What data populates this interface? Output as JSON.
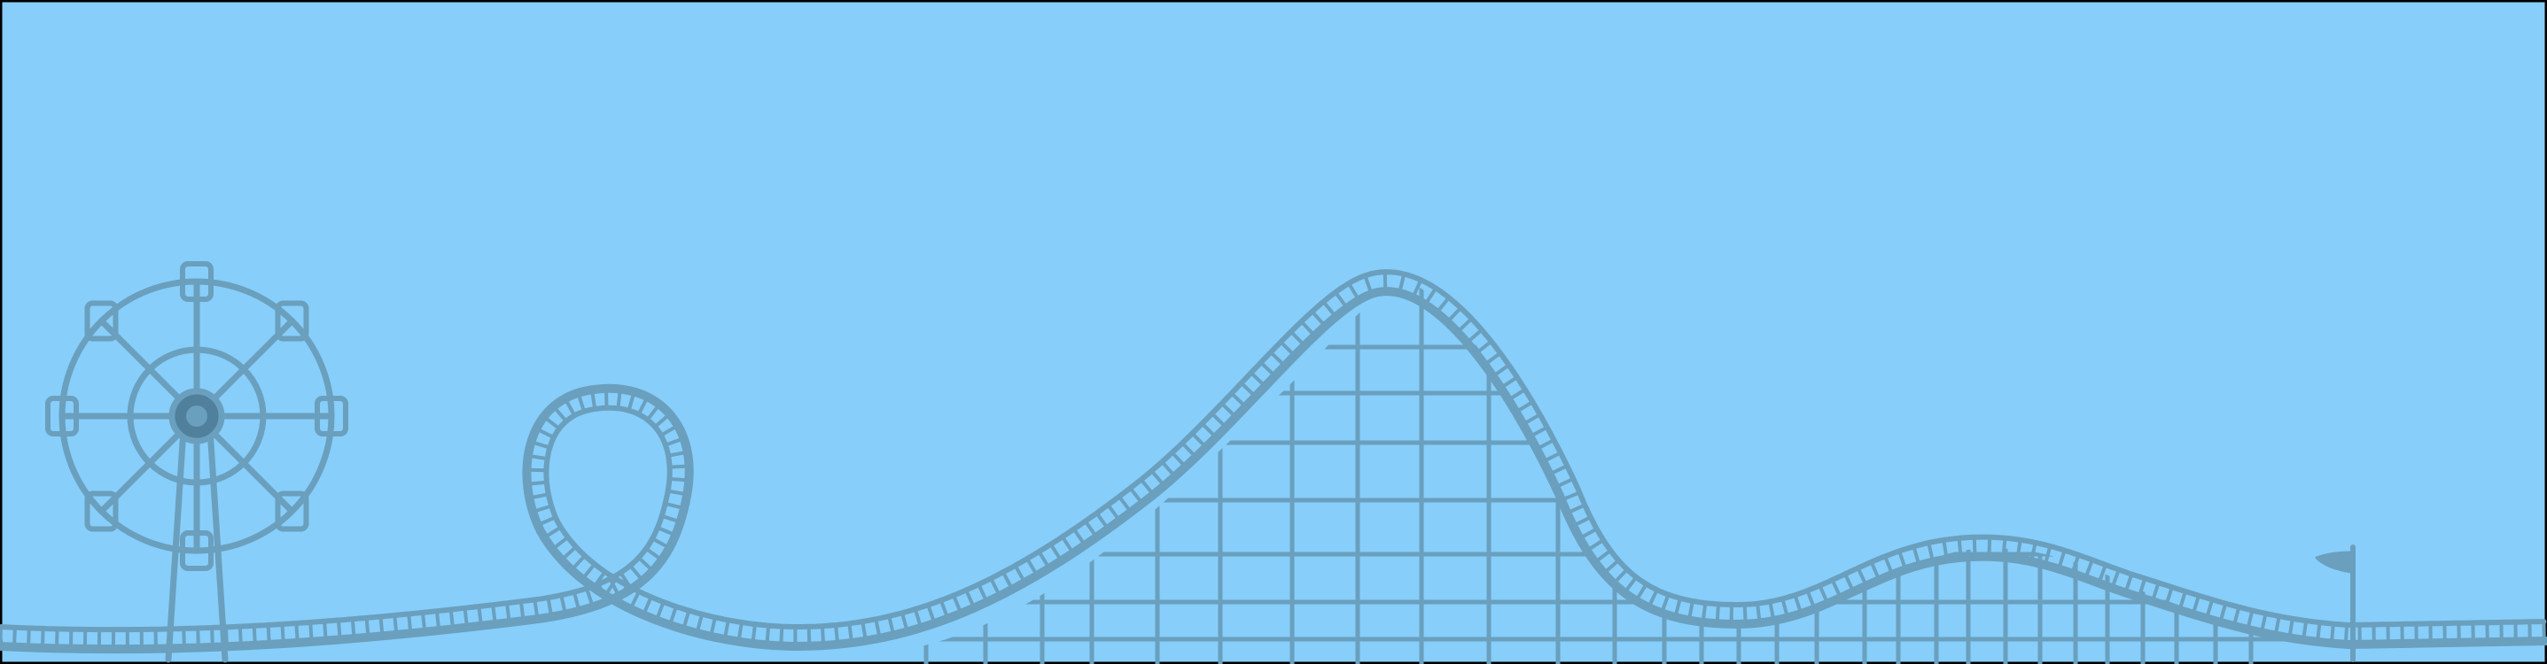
{
  "scene": {
    "sky_color": "#87cefa",
    "frame_color": "#000000",
    "line_color": "#6a9fbd",
    "hub_color": "#50809c"
  },
  "icons": {
    "ferris_wheel": "ferris-wheel-icon",
    "roller_coaster": "roller-coaster-icon",
    "flag": "flag-icon"
  }
}
